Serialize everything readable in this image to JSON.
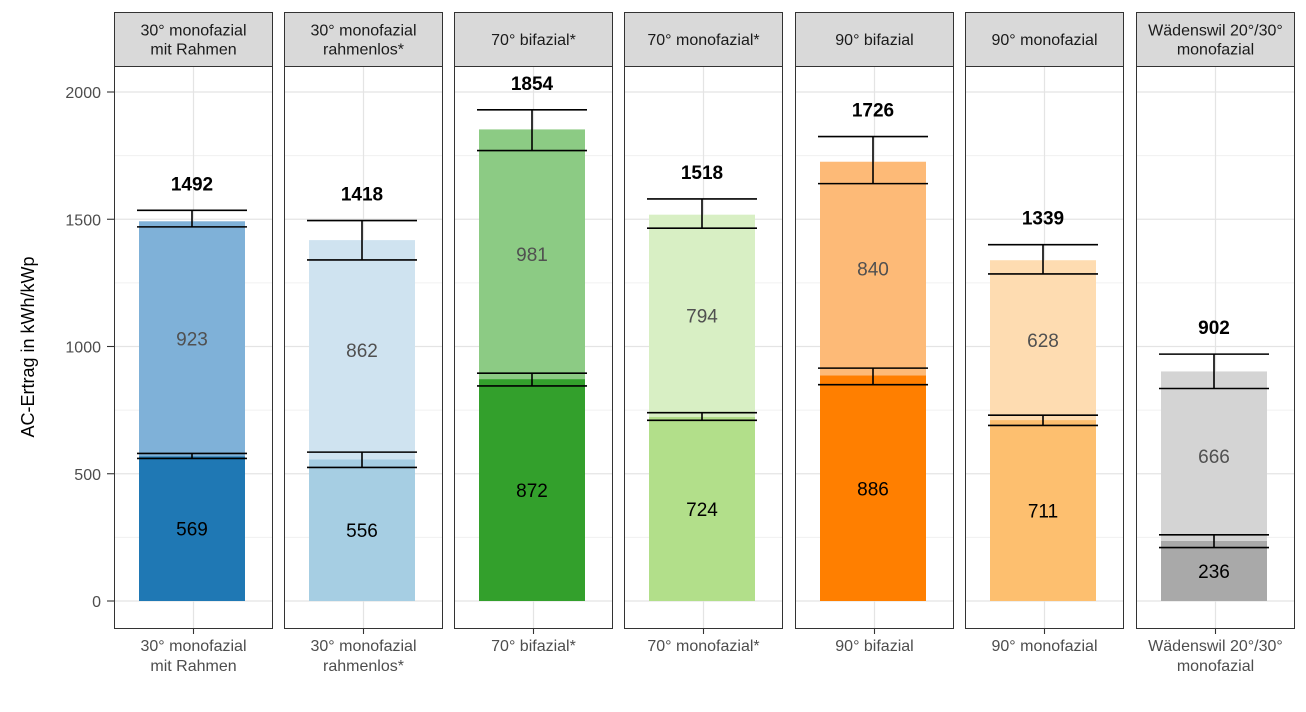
{
  "chart_data": {
    "type": "bar",
    "stacked": true,
    "ylabel": "AC-Ertrag in kWh/kWp",
    "ylim": [
      0,
      2000
    ],
    "yticks": [
      0,
      500,
      1000,
      1500,
      2000
    ],
    "grid": true,
    "facets": [
      {
        "label": "30° monofazial\nmit Rahmen",
        "total": 1492,
        "total_err": [
          1470,
          1535
        ],
        "segments": [
          {
            "value": 569,
            "color": "#1f78b4",
            "label_color": "#000000",
            "err": [
              560,
              580
            ]
          },
          {
            "value": 923,
            "color": "#7fb1d8",
            "label_color": "#505050"
          }
        ]
      },
      {
        "label": "30° monofazial\nrahmenlos*",
        "total": 1418,
        "total_err": [
          1340,
          1495
        ],
        "segments": [
          {
            "value": 556,
            "color": "#a6cee3",
            "label_color": "#000000",
            "err": [
              525,
              585
            ]
          },
          {
            "value": 862,
            "color": "#cfe3f0",
            "label_color": "#505050"
          }
        ]
      },
      {
        "label": "70° bifazial*",
        "total": 1854,
        "total_err": [
          1770,
          1930
        ],
        "segments": [
          {
            "value": 872,
            "color": "#33a02c",
            "label_color": "#000000",
            "err": [
              845,
              895
            ]
          },
          {
            "value": 981,
            "color": "#8ccb84",
            "label_color": "#505050"
          }
        ]
      },
      {
        "label": "70° monofazial*",
        "total": 1518,
        "total_err": [
          1465,
          1580
        ],
        "segments": [
          {
            "value": 724,
            "color": "#b2df8a",
            "label_color": "#000000",
            "err": [
              710,
              740
            ]
          },
          {
            "value": 794,
            "color": "#d8efc4",
            "label_color": "#505050"
          }
        ]
      },
      {
        "label": "90° bifazial",
        "total": 1726,
        "total_err": [
          1640,
          1825
        ],
        "segments": [
          {
            "value": 886,
            "color": "#ff7f00",
            "label_color": "#000000",
            "err": [
              850,
              915
            ]
          },
          {
            "value": 840,
            "color": "#fdba77",
            "label_color": "#505050"
          }
        ]
      },
      {
        "label": "90° monofazial",
        "total": 1339,
        "total_err": [
          1285,
          1400
        ],
        "segments": [
          {
            "value": 711,
            "color": "#fdbf6f",
            "label_color": "#000000",
            "err": [
              690,
              730
            ]
          },
          {
            "value": 628,
            "color": "#fedcb1",
            "label_color": "#505050"
          }
        ]
      },
      {
        "label": "Wädenswil 20°/30°\nmonofazial",
        "total": 902,
        "total_err": [
          835,
          970
        ],
        "segments": [
          {
            "value": 236,
            "color": "#a9a9a9",
            "label_color": "#000000",
            "err": [
              210,
              260
            ]
          },
          {
            "value": 666,
            "color": "#d4d4d4",
            "label_color": "#505050"
          }
        ]
      }
    ]
  }
}
